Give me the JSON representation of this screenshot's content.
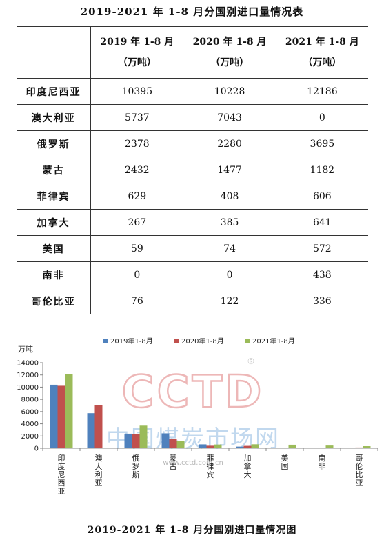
{
  "table": {
    "title": "2019-2021 年 1-8 月分国别进口量情况表",
    "header_corner": "",
    "columns": [
      {
        "line1": "2019 年 1-8 月",
        "line2": "（万吨）"
      },
      {
        "line1": "2020 年 1-8 月",
        "line2": "（万吨）"
      },
      {
        "line1": "2021 年 1-8 月",
        "line2": "（万吨）"
      }
    ],
    "rows": [
      {
        "country": "印度尼西亚",
        "values": [
          "10395",
          "10228",
          "12186"
        ]
      },
      {
        "country": "澳大利亚",
        "values": [
          "5737",
          "7043",
          "0"
        ]
      },
      {
        "country": "俄罗斯",
        "values": [
          "2378",
          "2280",
          "3695"
        ]
      },
      {
        "country": "蒙古",
        "values": [
          "2432",
          "1477",
          "1182"
        ]
      },
      {
        "country": "菲律宾",
        "values": [
          "629",
          "408",
          "606"
        ]
      },
      {
        "country": "加拿大",
        "values": [
          "267",
          "385",
          "641"
        ]
      },
      {
        "country": "美国",
        "values": [
          "59",
          "74",
          "572"
        ]
      },
      {
        "country": "南非",
        "values": [
          "0",
          "0",
          "438"
        ]
      },
      {
        "country": "哥伦比亚",
        "values": [
          "76",
          "122",
          "336"
        ]
      }
    ]
  },
  "chart_data": {
    "type": "bar",
    "title": "2019-2021 年 1-8 月分国别进口量情况图",
    "ylabel": "万吨",
    "xlabel": "",
    "ylim": [
      0,
      14000
    ],
    "yticks": [
      0,
      2000,
      4000,
      6000,
      8000,
      10000,
      12000,
      14000
    ],
    "legend_position": "top",
    "grid": false,
    "categories": [
      "印度尼西亚",
      "澳大利亚",
      "俄罗斯",
      "蒙古",
      "菲律宾",
      "加拿大",
      "美国",
      "南非",
      "哥伦比亚"
    ],
    "series": [
      {
        "name": "2019年1-8月",
        "color": "#4f81bd",
        "values": [
          10395,
          5737,
          2378,
          2432,
          629,
          267,
          59,
          0,
          76
        ]
      },
      {
        "name": "2020年1-8月",
        "color": "#c0504d",
        "values": [
          10228,
          7043,
          2280,
          1477,
          408,
          385,
          74,
          0,
          122
        ]
      },
      {
        "name": "2021年1-8月",
        "color": "#9bbb59",
        "values": [
          12186,
          0,
          3695,
          1182,
          606,
          641,
          572,
          438,
          336
        ]
      }
    ]
  },
  "watermark": {
    "logo_text": "CCTD",
    "registered_mark": "®",
    "cn_text": "中国煤炭市场网",
    "url": "www.cctd.com.cn",
    "colors": {
      "red": "#e8a0a0",
      "blue": "#a8c8e8",
      "gray": "#c8c8c8"
    }
  }
}
